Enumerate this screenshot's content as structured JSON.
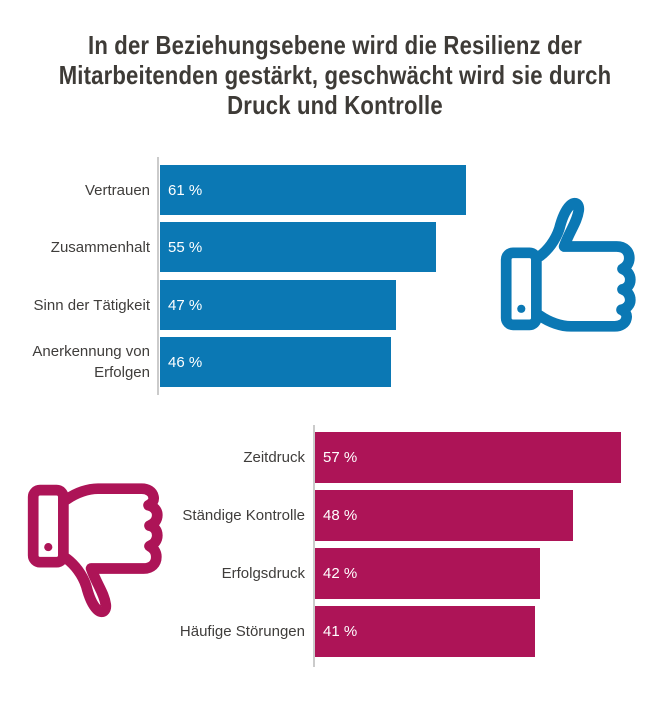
{
  "page": {
    "background_color": "#ffffff"
  },
  "title": {
    "text": "In der Beziehungsebene wird die Resilienz der Mitarbeitenden gestärkt, geschwächt wird sie durch Druck und Kontrolle",
    "lines": [
      "In der Beziehungsebene wird die Resilienz der",
      "Mitarbeitenden gestärkt, geschwächt wird sie durch",
      "Druck und Kontrolle"
    ],
    "color": "#3e3b37"
  },
  "chart_data": [
    {
      "type": "bar",
      "orientation": "horizontal",
      "name": "strengthening-factors",
      "icon": "thumbs-up-icon",
      "bar_color": "#0b78b4",
      "label_color": "#3f3d3b",
      "value_label_color": "#ffffff",
      "axis_color": "#cbcbcb",
      "grid": false,
      "legend": false,
      "xlim": [
        0,
        61
      ],
      "categories": [
        "Vertrauen",
        "Zusammenhalt",
        "Sinn der Tätigkeit",
        "Anerkennung von Erfolgen"
      ],
      "values": [
        61,
        55,
        47,
        46
      ],
      "value_labels": [
        "61 %",
        "55 %",
        "47 %",
        "46 %"
      ]
    },
    {
      "type": "bar",
      "orientation": "horizontal",
      "name": "weakening-factors",
      "icon": "thumbs-down-icon",
      "bar_color": "#ad1457",
      "label_color": "#3f3d3b",
      "value_label_color": "#ffffff",
      "axis_color": "#cbcbcb",
      "grid": false,
      "legend": false,
      "xlim": [
        0,
        57
      ],
      "categories": [
        "Zeitdruck",
        "Ständige Kontrolle",
        "Erfolgsdruck",
        "Häufige Störungen"
      ],
      "values": [
        57,
        48,
        42,
        41
      ],
      "value_labels": [
        "57 %",
        "48 %",
        "42 %",
        "41 %"
      ]
    }
  ]
}
